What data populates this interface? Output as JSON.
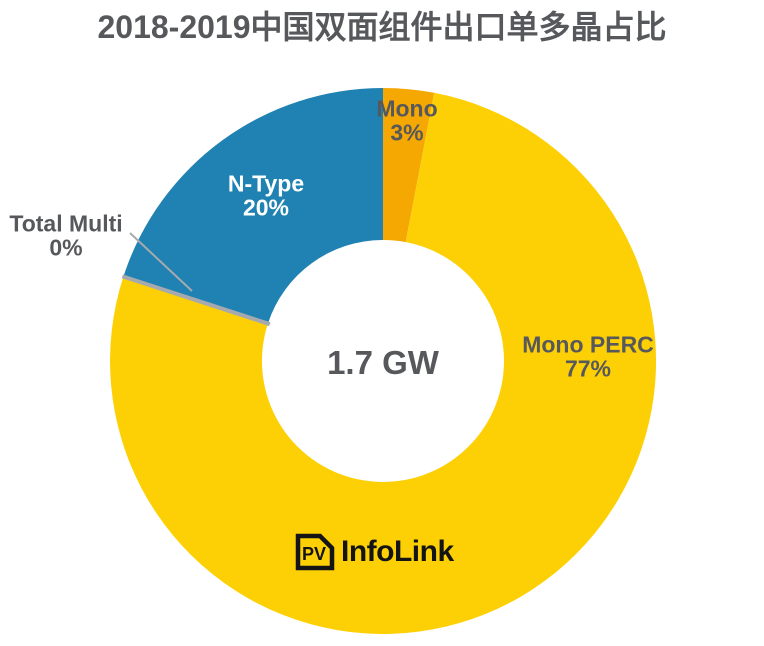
{
  "chart_data": {
    "type": "pie",
    "variant": "donut",
    "title": "2018-2019中国双面组件出口单多晶占比",
    "center_label": "1.7 GW",
    "unit": "%",
    "start_angle_deg": 0,
    "direction": "clockwise",
    "legend_position": "none",
    "slices": [
      {
        "name": "Mono",
        "value_pct": 3,
        "pct_label": "3%",
        "color": "#F5A802",
        "label_color": "#57585B"
      },
      {
        "name": "Mono PERC",
        "value_pct": 77,
        "pct_label": "77%",
        "color": "#FDD005",
        "label_color": "#57585B"
      },
      {
        "name": "Total Multi",
        "value_pct": 0,
        "pct_label": "0%",
        "color": "#A6AAAE",
        "label_color": "#57585B",
        "leader_line": true
      },
      {
        "name": "N-Type",
        "value_pct": 20,
        "pct_label": "20%",
        "color": "#1F82B2",
        "label_color": "#FFFFFF"
      }
    ]
  },
  "logo": {
    "badge": "PV",
    "wordmark": "InfoLink"
  },
  "colors": {
    "background": "#FFFFFF",
    "title_text": "#57585B",
    "leader_line": "#A6AAAE"
  }
}
